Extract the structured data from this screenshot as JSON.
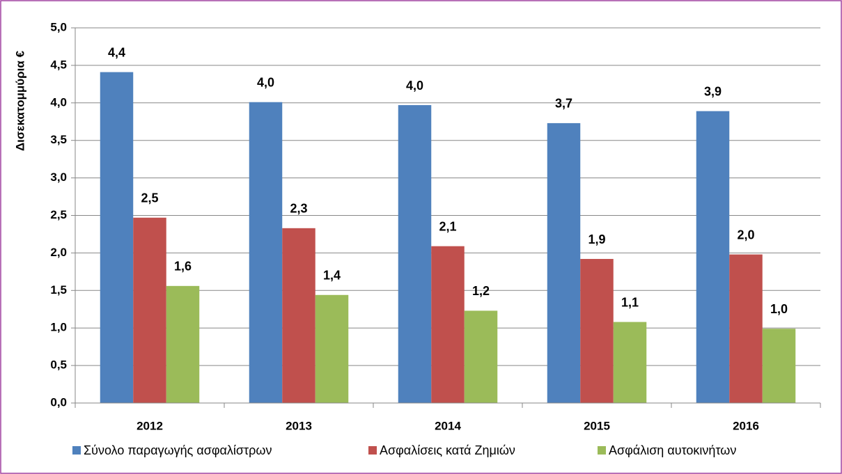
{
  "chart_data": {
    "type": "bar",
    "y_label": "Δισεκατομμύρια €",
    "categories": [
      "2012",
      "2013",
      "2014",
      "2015",
      "2016"
    ],
    "series": [
      {
        "name": "Σύνολο παραγωγής ασφαλίστρων",
        "color": "#4f81bd",
        "values": [
          4.41,
          4.01,
          3.97,
          3.73,
          3.89
        ],
        "value_labels": [
          "4,4",
          "4,0",
          "4,0",
          "3,7",
          "3,9"
        ]
      },
      {
        "name": "Ασφαλίσεις κατά Ζημιών",
        "color": "#c0504d",
        "values": [
          2.47,
          2.33,
          2.09,
          1.92,
          1.98
        ],
        "value_labels": [
          "2,5",
          "2,3",
          "2,1",
          "1,9",
          "2,0"
        ]
      },
      {
        "name": "Ασφάλιση αυτοκινήτων",
        "color": "#9bbb59",
        "values": [
          1.56,
          1.44,
          1.23,
          1.08,
          0.99
        ],
        "value_labels": [
          "1,6",
          "1,4",
          "1,2",
          "1,1",
          "1,0"
        ]
      }
    ],
    "ylim": [
      0,
      5
    ],
    "yticks": [
      {
        "value": 0,
        "label": "0,0"
      },
      {
        "value": 0.5,
        "label": "0,5"
      },
      {
        "value": 1,
        "label": "1,0"
      },
      {
        "value": 1.5,
        "label": "1,5"
      },
      {
        "value": 2,
        "label": "2,0"
      },
      {
        "value": 2.5,
        "label": "2,5"
      },
      {
        "value": 3,
        "label": "3,0"
      },
      {
        "value": 3.5,
        "label": "3,5"
      },
      {
        "value": 4,
        "label": "4,0"
      },
      {
        "value": 4.5,
        "label": "4,5"
      },
      {
        "value": 5,
        "label": "5,0"
      }
    ],
    "grid": true,
    "legend": "bottom"
  }
}
